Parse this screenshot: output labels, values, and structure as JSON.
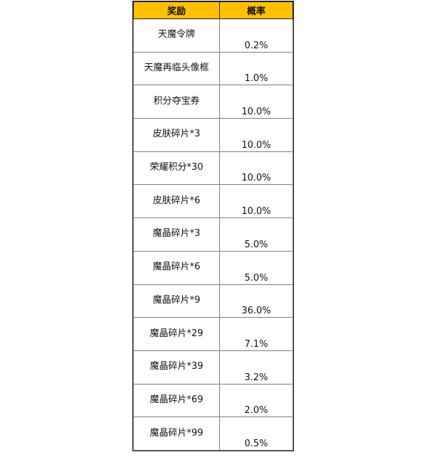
{
  "header": {
    "reward": "奖励",
    "probability": "概率",
    "header_color": "#FFC000"
  },
  "rows": [
    {
      "reward": "天魔令牌",
      "probability": "0.2%"
    },
    {
      "reward": "天魔再临头像框",
      "probability": "1.0%"
    },
    {
      "reward": "积分夺宝券",
      "probability": "10.0%"
    },
    {
      "reward": "皮肤碎片*3",
      "probability": "10.0%"
    },
    {
      "reward": "荣耀积分*30",
      "probability": "10.0%"
    },
    {
      "reward": "皮肤碎片*6",
      "probability": "10.0%"
    },
    {
      "reward": "魔晶碎片*3",
      "probability": "5.0%"
    },
    {
      "reward": "魔晶碎片*6",
      "probability": "5.0%"
    },
    {
      "reward": "魔晶碎片*9",
      "probability": "36.0%"
    },
    {
      "reward": "魔晶碎片*29",
      "probability": "7.1%"
    },
    {
      "reward": "魔晶碎片*39",
      "probability": "3.2%"
    },
    {
      "reward": "魔晶碎片*69",
      "probability": "2.0%"
    },
    {
      "reward": "魔晶碎片*99",
      "probability": "0.5%"
    }
  ]
}
